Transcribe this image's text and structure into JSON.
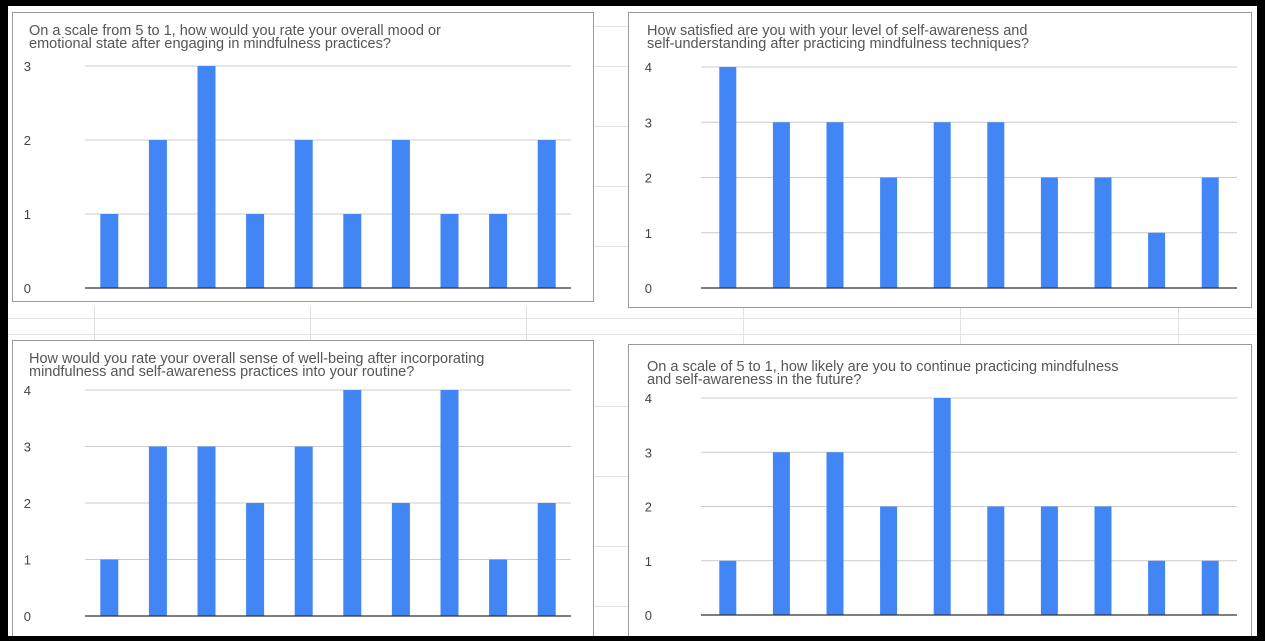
{
  "colors": {
    "bar": "#4285f4",
    "gridline": "#cccccc",
    "baseline": "#333333"
  },
  "charts": [
    {
      "title_line1": "On a scale from 5 to 1, how would you rate your overall mood or",
      "title_line2": "emotional state after engaging in mindfulness practices?"
    },
    {
      "title_line1": "How satisfied are you with your level of self-awareness and",
      "title_line2": "self-understanding after practicing mindfulness techniques?"
    },
    {
      "title_line1": "How would you rate your overall sense of well-being after incorporating",
      "title_line2": "mindfulness and self-awareness practices into your routine?"
    },
    {
      "title_line1": "On a scale of 5 to 1, how likely are you to continue practicing mindfulness",
      "title_line2": "and self-awareness in the future?"
    }
  ],
  "chart_data": [
    {
      "type": "bar",
      "title": "On a scale from 5 to 1, how would you rate your overall mood or emotional state after engaging in mindfulness practices?",
      "values": [
        1,
        2,
        3,
        1,
        2,
        1,
        2,
        1,
        1,
        2
      ],
      "ylim": [
        0,
        3
      ],
      "yticks": [
        0,
        1,
        2,
        3
      ],
      "grid": true,
      "legend": "none"
    },
    {
      "type": "bar",
      "title": "How satisfied are you with your level of self-awareness and self-understanding after practicing mindfulness techniques?",
      "values": [
        4,
        3,
        3,
        2,
        3,
        3,
        2,
        2,
        1,
        2
      ],
      "ylim": [
        0,
        4
      ],
      "yticks": [
        0,
        1,
        2,
        3,
        4
      ],
      "grid": true,
      "legend": "none"
    },
    {
      "type": "bar",
      "title": "How would you rate your overall sense of well-being after incorporating mindfulness and self-awareness practices into your routine?",
      "values": [
        1,
        3,
        3,
        2,
        3,
        4,
        2,
        4,
        1,
        2
      ],
      "ylim": [
        0,
        4
      ],
      "yticks": [
        0,
        1,
        2,
        3,
        4
      ],
      "grid": true,
      "legend": "none"
    },
    {
      "type": "bar",
      "title": "On a scale of 5 to 1, how likely are you to continue practicing mindfulness and self-awareness in the future?",
      "values": [
        1,
        3,
        3,
        2,
        4,
        2,
        2,
        2,
        1,
        1
      ],
      "ylim": [
        0,
        4
      ],
      "yticks": [
        0,
        1,
        2,
        3,
        4
      ],
      "grid": true,
      "legend": "none"
    }
  ]
}
